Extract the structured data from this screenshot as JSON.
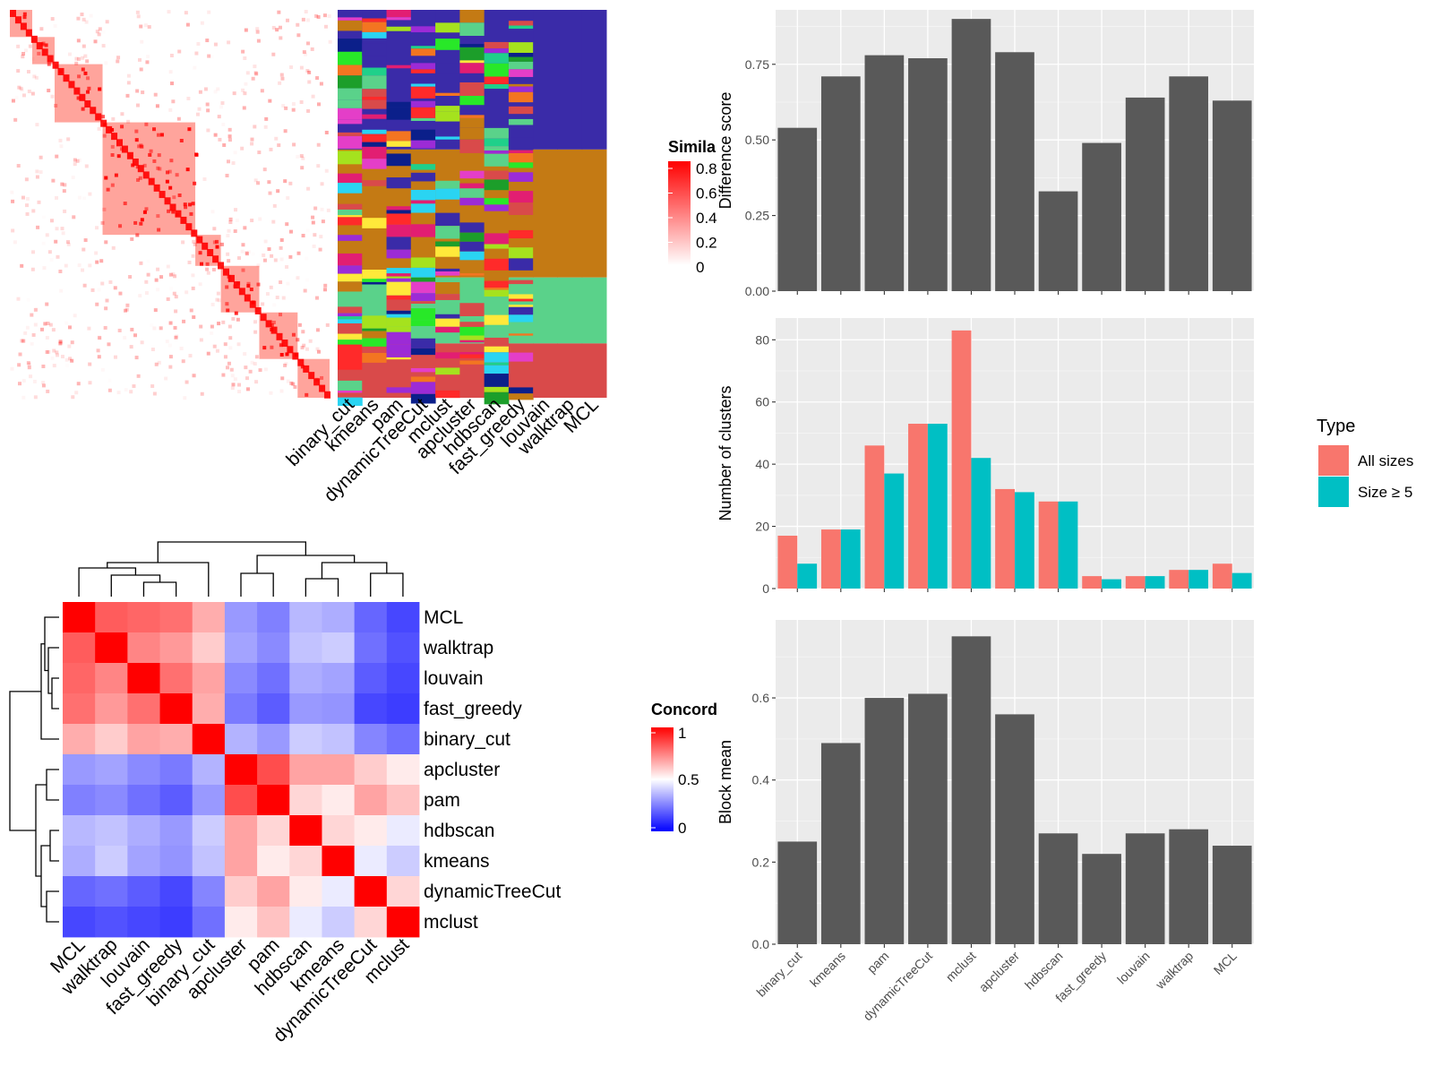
{
  "colors": {
    "panel_bg": "#ebebeb",
    "bar_fill": "#595959",
    "all_sizes": "#F8766D",
    "size_ge5": "#00BFC4",
    "heat_high": "#ff0000",
    "heat_mid": "#ffffff",
    "heat_low": "#0000ff"
  },
  "similarity_legend": {
    "title": "Simila",
    "ticks": [
      "0.8",
      "0.6",
      "0.4",
      "0.2",
      "0"
    ]
  },
  "membership_matrix": {
    "columns": [
      "binary_cut",
      "kmeans",
      "pam",
      "dynamicTreeCut",
      "mclust",
      "apcluster",
      "hdbscan",
      "fast_greedy",
      "louvain",
      "walktrap",
      "MCL"
    ]
  },
  "concordance_legend": {
    "title": "Concord",
    "ticks": [
      "1",
      "0.5",
      "0"
    ]
  },
  "type_legend": {
    "title": "Type",
    "items": [
      "All sizes",
      "Size ≥ 5"
    ]
  },
  "chart_data": [
    {
      "type": "heatmap",
      "title": "",
      "legend_title": "Concordance",
      "rows": [
        "MCL",
        "walktrap",
        "louvain",
        "fast_greedy",
        "binary_cut",
        "apcluster",
        "pam",
        "hdbscan",
        "kmeans",
        "dynamicTreeCut",
        "mclust"
      ],
      "columns": [
        "MCL",
        "walktrap",
        "louvain",
        "fast_greedy",
        "binary_cut",
        "apcluster",
        "pam",
        "hdbscan",
        "kmeans",
        "dynamicTreeCut",
        "mclust"
      ],
      "values": [
        [
          1.0,
          0.82,
          0.8,
          0.78,
          0.66,
          0.3,
          0.25,
          0.36,
          0.34,
          0.2,
          0.14
        ],
        [
          0.82,
          1.0,
          0.74,
          0.7,
          0.6,
          0.32,
          0.27,
          0.38,
          0.4,
          0.22,
          0.16
        ],
        [
          0.8,
          0.74,
          1.0,
          0.78,
          0.68,
          0.27,
          0.22,
          0.34,
          0.32,
          0.18,
          0.14
        ],
        [
          0.78,
          0.7,
          0.78,
          1.0,
          0.66,
          0.24,
          0.18,
          0.3,
          0.29,
          0.14,
          0.12
        ],
        [
          0.66,
          0.6,
          0.68,
          0.66,
          1.0,
          0.35,
          0.3,
          0.4,
          0.38,
          0.26,
          0.22
        ],
        [
          0.3,
          0.32,
          0.27,
          0.24,
          0.35,
          1.0,
          0.85,
          0.68,
          0.68,
          0.6,
          0.54
        ],
        [
          0.25,
          0.27,
          0.22,
          0.18,
          0.3,
          0.85,
          1.0,
          0.58,
          0.54,
          0.68,
          0.62
        ],
        [
          0.36,
          0.38,
          0.34,
          0.3,
          0.4,
          0.68,
          0.58,
          1.0,
          0.58,
          0.54,
          0.46
        ],
        [
          0.34,
          0.4,
          0.32,
          0.29,
          0.38,
          0.68,
          0.54,
          0.58,
          1.0,
          0.46,
          0.4
        ],
        [
          0.2,
          0.22,
          0.18,
          0.14,
          0.26,
          0.6,
          0.68,
          0.54,
          0.46,
          1.0,
          0.58
        ],
        [
          0.14,
          0.16,
          0.14,
          0.12,
          0.22,
          0.54,
          0.62,
          0.46,
          0.4,
          0.58,
          1.0
        ]
      ],
      "colorscale": {
        "min": 0,
        "mid": 0.5,
        "max": 1
      }
    },
    {
      "type": "bar",
      "title": "",
      "xlabel": "",
      "ylabel": "Difference score",
      "categories": [
        "binary_cut",
        "kmeans",
        "pam",
        "dynamicTreeCut",
        "mclust",
        "apcluster",
        "hdbscan",
        "fast_greedy",
        "louvain",
        "walktrap",
        "MCL"
      ],
      "values": [
        0.54,
        0.71,
        0.78,
        0.77,
        0.9,
        0.79,
        0.33,
        0.49,
        0.64,
        0.71,
        0.63
      ],
      "ylim": [
        0,
        0.93
      ],
      "yticks": [
        "0.00",
        "0.25",
        "0.50",
        "0.75"
      ],
      "grid": true
    },
    {
      "type": "bar",
      "title": "",
      "xlabel": "",
      "ylabel": "Number of clusters",
      "categories": [
        "binary_cut",
        "kmeans",
        "pam",
        "dynamicTreeCut",
        "mclust",
        "apcluster",
        "hdbscan",
        "fast_greedy",
        "louvain",
        "walktrap",
        "MCL"
      ],
      "series": [
        {
          "name": "All sizes",
          "values": [
            17,
            19,
            46,
            53,
            83,
            32,
            28,
            4,
            4,
            6,
            8
          ]
        },
        {
          "name": "Size ≥ 5",
          "values": [
            8,
            19,
            37,
            53,
            42,
            31,
            28,
            3,
            4,
            6,
            5
          ]
        }
      ],
      "ylim": [
        0,
        87
      ],
      "yticks": [
        "0",
        "20",
        "40",
        "60",
        "80"
      ],
      "legend": "right",
      "grid": true
    },
    {
      "type": "bar",
      "title": "",
      "xlabel": "",
      "ylabel": "Block mean",
      "categories": [
        "binary_cut",
        "kmeans",
        "pam",
        "dynamicTreeCut",
        "mclust",
        "apcluster",
        "hdbscan",
        "fast_greedy",
        "louvain",
        "walktrap",
        "MCL"
      ],
      "values": [
        0.25,
        0.49,
        0.6,
        0.61,
        0.75,
        0.56,
        0.27,
        0.22,
        0.27,
        0.28,
        0.24
      ],
      "ylim": [
        0,
        0.79
      ],
      "yticks": [
        "0.0",
        "0.2",
        "0.4",
        "0.6"
      ],
      "grid": true
    }
  ]
}
